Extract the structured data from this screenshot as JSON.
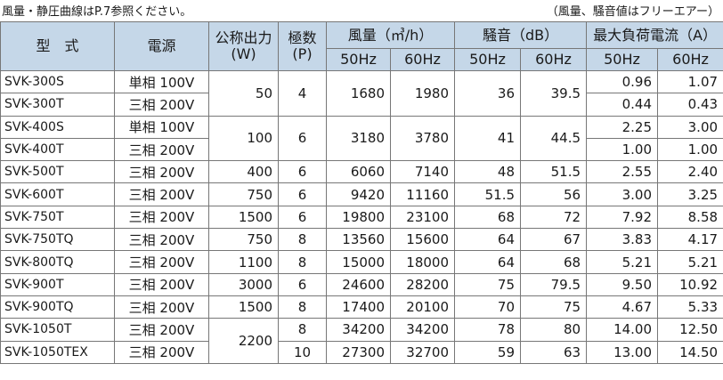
{
  "notes": {
    "left": "風量・静圧曲線はP.7参照ください。",
    "right": "（風量、騒音値はフリーエアー）"
  },
  "headers": {
    "model": "型　式",
    "power": "電源",
    "output": "公称出力",
    "output_unit": "(W)",
    "poles": "極数",
    "poles_unit": "(P)",
    "airflow": "風量（㎥/h）",
    "noise": "騒音（dB）",
    "current": "最大負荷電流（A）",
    "hz50": "50Hz",
    "hz60": "60Hz"
  },
  "rows": [
    {
      "model": "SVK-300S",
      "power": "単相 100V",
      "output": "50",
      "poles": "4",
      "air50": "1680",
      "air60": "1980",
      "noise50": "36",
      "noise60": "39.5",
      "cur50": "0.96",
      "cur60": "1.07"
    },
    {
      "model": "SVK-300T",
      "power": "三相 200V",
      "cur50": "0.44",
      "cur60": "0.43"
    },
    {
      "model": "SVK-400S",
      "power": "単相 100V",
      "output": "100",
      "poles": "6",
      "air50": "3180",
      "air60": "3780",
      "noise50": "41",
      "noise60": "44.5",
      "cur50": "2.25",
      "cur60": "3.00"
    },
    {
      "model": "SVK-400T",
      "power": "三相 200V",
      "cur50": "1.00",
      "cur60": "1.00"
    },
    {
      "model": "SVK-500T",
      "power": "三相 200V",
      "output": "400",
      "poles": "6",
      "air50": "6060",
      "air60": "7140",
      "noise50": "48",
      "noise60": "51.5",
      "cur50": "2.55",
      "cur60": "2.40"
    },
    {
      "model": "SVK-600T",
      "power": "三相 200V",
      "output": "750",
      "poles": "6",
      "air50": "9420",
      "air60": "11160",
      "noise50": "51.5",
      "noise60": "56",
      "cur50": "3.00",
      "cur60": "3.25"
    },
    {
      "model": "SVK-750T",
      "power": "三相 200V",
      "output": "1500",
      "poles": "6",
      "air50": "19800",
      "air60": "23100",
      "noise50": "68",
      "noise60": "72",
      "cur50": "7.92",
      "cur60": "8.58"
    },
    {
      "model": "SVK-750TQ",
      "power": "三相 200V",
      "output": "750",
      "poles": "8",
      "air50": "13560",
      "air60": "15600",
      "noise50": "64",
      "noise60": "67",
      "cur50": "3.83",
      "cur60": "4.17"
    },
    {
      "model": "SVK-800TQ",
      "power": "三相 200V",
      "output": "1100",
      "poles": "8",
      "air50": "15000",
      "air60": "18000",
      "noise50": "64",
      "noise60": "68",
      "cur50": "5.21",
      "cur60": "5.21"
    },
    {
      "model": "SVK-900T",
      "power": "三相 200V",
      "output": "3000",
      "poles": "6",
      "air50": "24600",
      "air60": "28200",
      "noise50": "75",
      "noise60": "79.5",
      "cur50": "9.50",
      "cur60": "10.92"
    },
    {
      "model": "SVK-900TQ",
      "power": "三相 200V",
      "output": "1500",
      "poles": "8",
      "air50": "17400",
      "air60": "20100",
      "noise50": "70",
      "noise60": "75",
      "cur50": "4.67",
      "cur60": "5.33"
    },
    {
      "model": "SVK-1050T",
      "power": "三相 200V",
      "output": "2200",
      "poles": "8",
      "air50": "34200",
      "air60": "34200",
      "noise50": "78",
      "noise60": "80",
      "cur50": "14.00",
      "cur60": "12.50"
    },
    {
      "model": "SVK-1050TEX",
      "power": "三相 200V",
      "poles": "10",
      "air50": "27300",
      "air60": "32700",
      "noise50": "59",
      "noise60": "63",
      "cur50": "13.00",
      "cur60": "14.50"
    }
  ]
}
